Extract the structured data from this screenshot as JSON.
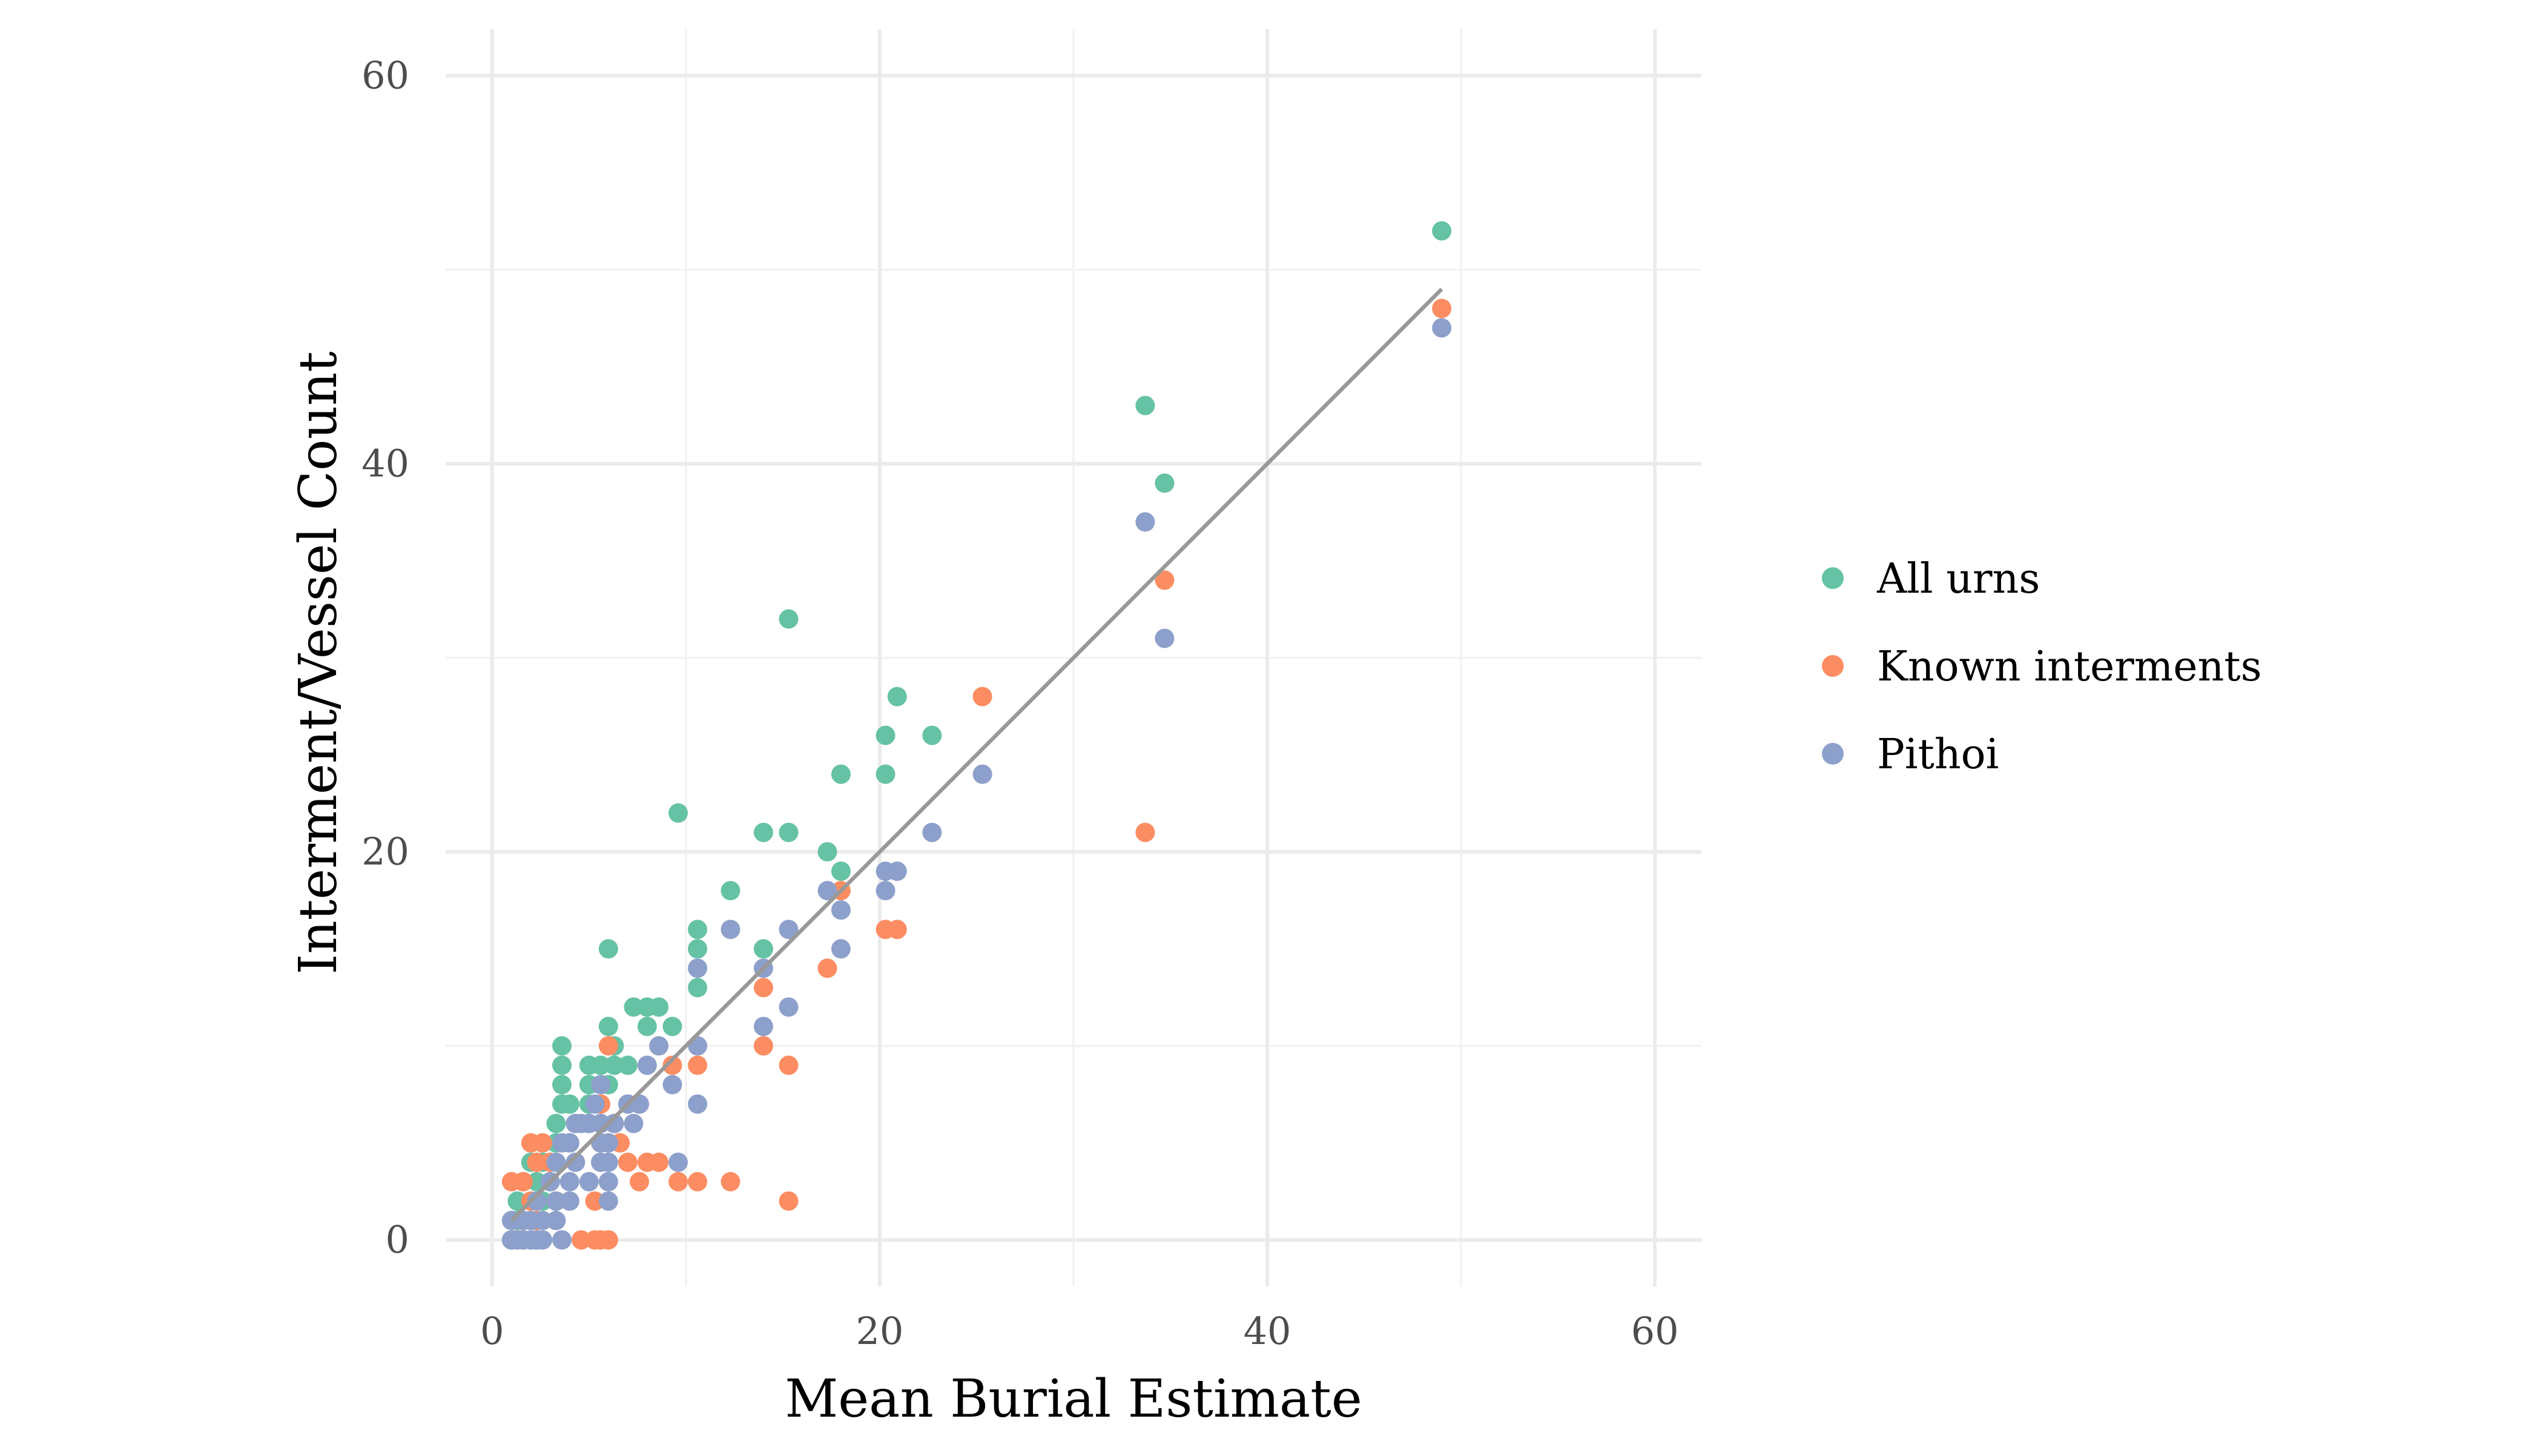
{
  "chart_data": {
    "type": "scatter",
    "xlabel": "Mean Burial Estimate",
    "ylabel": "Interment/Vessel Count",
    "xlim": [
      -2.4,
      62.4
    ],
    "ylim": [
      -2.4,
      62.4
    ],
    "xticks": [
      0,
      20,
      40,
      60
    ],
    "yticks": [
      0,
      20,
      40,
      60
    ],
    "grid": true,
    "legend_position": "right",
    "colors": {
      "all_urns": "#66c2a5",
      "known_interments": "#fc8d62",
      "pithoi": "#8da0cb",
      "trend": "#999999"
    },
    "series": [
      {
        "name": "All urns",
        "color": "#66c2a5",
        "points": [
          [
            49,
            52
          ],
          [
            33.7,
            43
          ],
          [
            34.7,
            39
          ],
          [
            15.3,
            32
          ],
          [
            20.9,
            28
          ],
          [
            20.3,
            26
          ],
          [
            22.7,
            26
          ],
          [
            18,
            24
          ],
          [
            20.3,
            24
          ],
          [
            9.6,
            22
          ],
          [
            14,
            21
          ],
          [
            15.3,
            21
          ],
          [
            17.3,
            20
          ],
          [
            18,
            19
          ],
          [
            12.3,
            18
          ],
          [
            10.6,
            16
          ],
          [
            10.6,
            15
          ],
          [
            14,
            15
          ],
          [
            6,
            15
          ],
          [
            10.6,
            13
          ],
          [
            7.3,
            12
          ],
          [
            8,
            12
          ],
          [
            8.6,
            12
          ],
          [
            6,
            11
          ],
          [
            8,
            11
          ],
          [
            9.3,
            11
          ],
          [
            3.6,
            10
          ],
          [
            6.3,
            10
          ],
          [
            3.6,
            9
          ],
          [
            5,
            9
          ],
          [
            5.6,
            9
          ],
          [
            6.3,
            9
          ],
          [
            7,
            9
          ],
          [
            3.6,
            8
          ],
          [
            5,
            8
          ],
          [
            6,
            8
          ],
          [
            3.6,
            7
          ],
          [
            4,
            7
          ],
          [
            5,
            7
          ],
          [
            3.3,
            6
          ],
          [
            4.3,
            6
          ],
          [
            5,
            6
          ],
          [
            2.6,
            5
          ],
          [
            3.3,
            5
          ],
          [
            4,
            5
          ],
          [
            2,
            4
          ],
          [
            2.6,
            4
          ],
          [
            3.3,
            4
          ],
          [
            1.6,
            3
          ],
          [
            2.3,
            3
          ],
          [
            3,
            3
          ],
          [
            1.3,
            2
          ],
          [
            2,
            2
          ],
          [
            2.6,
            2
          ],
          [
            1.3,
            1
          ],
          [
            1.6,
            1
          ],
          [
            1,
            0
          ],
          [
            1.6,
            0
          ],
          [
            2.3,
            0
          ]
        ]
      },
      {
        "name": "Known interments",
        "color": "#fc8d62",
        "points": [
          [
            49,
            48
          ],
          [
            34.7,
            34
          ],
          [
            25.3,
            28
          ],
          [
            33.7,
            21
          ],
          [
            18,
            18
          ],
          [
            20.3,
            16
          ],
          [
            20.9,
            16
          ],
          [
            17.3,
            14
          ],
          [
            14,
            13
          ],
          [
            14,
            10
          ],
          [
            15.3,
            9
          ],
          [
            10.6,
            9
          ],
          [
            9.3,
            9
          ],
          [
            6,
            10
          ],
          [
            5.6,
            7
          ],
          [
            6.3,
            6
          ],
          [
            6.6,
            5
          ],
          [
            5.6,
            5
          ],
          [
            7,
            4
          ],
          [
            8,
            4
          ],
          [
            8.6,
            4
          ],
          [
            7.6,
            3
          ],
          [
            9.6,
            3
          ],
          [
            10.6,
            3
          ],
          [
            12.3,
            3
          ],
          [
            15.3,
            2
          ],
          [
            5.3,
            2
          ],
          [
            2,
            5
          ],
          [
            2.6,
            5
          ],
          [
            1,
            3
          ],
          [
            1.6,
            3
          ],
          [
            2.3,
            4
          ],
          [
            3,
            4
          ],
          [
            3.3,
            2
          ],
          [
            1.6,
            1
          ],
          [
            2,
            2
          ],
          [
            4.6,
            0
          ],
          [
            5.3,
            0
          ],
          [
            5.6,
            0
          ],
          [
            6,
            0
          ],
          [
            1.3,
            0
          ],
          [
            1.6,
            0
          ],
          [
            2.3,
            1
          ]
        ]
      },
      {
        "name": "Pithoi",
        "color": "#8da0cb",
        "points": [
          [
            49,
            47
          ],
          [
            33.7,
            37
          ],
          [
            34.7,
            31
          ],
          [
            25.3,
            24
          ],
          [
            22.7,
            21
          ],
          [
            20.3,
            19
          ],
          [
            20.9,
            19
          ],
          [
            20.3,
            18
          ],
          [
            17.3,
            18
          ],
          [
            18,
            17
          ],
          [
            12.3,
            16
          ],
          [
            15.3,
            16
          ],
          [
            18,
            15
          ],
          [
            10.6,
            14
          ],
          [
            14,
            14
          ],
          [
            15.3,
            12
          ],
          [
            14,
            11
          ],
          [
            10.6,
            10
          ],
          [
            8.6,
            10
          ],
          [
            8,
            9
          ],
          [
            9.3,
            8
          ],
          [
            5.6,
            8
          ],
          [
            10.6,
            7
          ],
          [
            7,
            7
          ],
          [
            7.6,
            7
          ],
          [
            5.3,
            7
          ],
          [
            5.6,
            6
          ],
          [
            6.3,
            6
          ],
          [
            7.3,
            6
          ],
          [
            4.3,
            6
          ],
          [
            4.6,
            6
          ],
          [
            5,
            6
          ],
          [
            3.6,
            5
          ],
          [
            4,
            5
          ],
          [
            5.6,
            5
          ],
          [
            6,
            5
          ],
          [
            3.3,
            4
          ],
          [
            4.3,
            4
          ],
          [
            5.6,
            4
          ],
          [
            6,
            4
          ],
          [
            9.6,
            4
          ],
          [
            3,
            3
          ],
          [
            4,
            3
          ],
          [
            5,
            3
          ],
          [
            6,
            3
          ],
          [
            2.3,
            2
          ],
          [
            3.3,
            2
          ],
          [
            4,
            2
          ],
          [
            6,
            2
          ],
          [
            1,
            1
          ],
          [
            1.6,
            1
          ],
          [
            2,
            1
          ],
          [
            2.6,
            1
          ],
          [
            3.3,
            1
          ],
          [
            1,
            0
          ],
          [
            1.3,
            0
          ],
          [
            1.6,
            0
          ],
          [
            2,
            0
          ],
          [
            2.3,
            0
          ],
          [
            2.6,
            0
          ],
          [
            3.6,
            0
          ]
        ]
      }
    ],
    "trendline": {
      "x": [
        1,
        49
      ],
      "y": [
        1,
        49
      ]
    }
  }
}
